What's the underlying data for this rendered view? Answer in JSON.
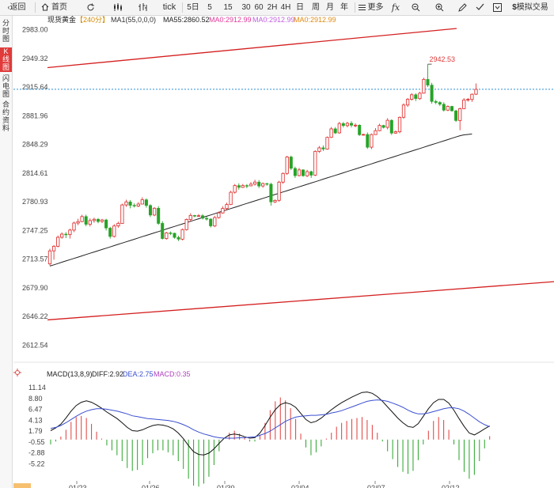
{
  "toolbar": {
    "back": "返回",
    "home": "首页",
    "tick": "tick",
    "periods": [
      "5日",
      "5",
      "15",
      "30",
      "60",
      "2H",
      "4H",
      "日",
      "周",
      "月",
      "年"
    ],
    "more": "更多",
    "sim_trade": "模拟交易"
  },
  "sidebar": {
    "tabs": [
      {
        "label": "分时图",
        "active": false
      },
      {
        "label": "K线图",
        "active": true
      },
      {
        "label": "闪电图",
        "active": false
      },
      {
        "label": "合约资料",
        "active": false
      }
    ]
  },
  "header": {
    "name": "现货黄金",
    "period": "【240分】",
    "ma_params": "MA1(55,0,0,0)",
    "ma55": "MA55:2860.52",
    "ma0_1": "MA0:2912.99",
    "ma0_2": "MA0:2912.99",
    "ma0_3": "MA0:2912.99"
  },
  "macd_header": {
    "name": "MACD(13,8,9)",
    "diff": "DIFF:2.92",
    "dea": "DEA:2.75",
    "macd": "MACD:0.35"
  },
  "colors": {
    "up": "#e03a3a",
    "down": "#27a327",
    "ma": "#222222",
    "trend": "#d42020",
    "dea": "#3a4fd0",
    "last_price": "#2a8fd6"
  },
  "chart_data": [
    {
      "type": "candlestick",
      "title": "现货黄金 240分",
      "ylim": [
        2600,
        2990
      ],
      "yticks": [
        2983.0,
        2949.32,
        2915.64,
        2881.96,
        2848.29,
        2814.61,
        2780.93,
        2747.25,
        2713.57,
        2679.9,
        2646.22,
        2612.54
      ],
      "xticks": [
        "01/23",
        "01/26",
        "01/30",
        "02/04",
        "02/07",
        "02/12"
      ],
      "high_annotation": {
        "label": "2942.53",
        "value": 2942.53
      },
      "last_price": 2912.99,
      "candles": [
        [
          2708.1,
          2723.3,
          2706.2,
          2725.8
        ],
        [
          2723.3,
          2728.7,
          2712.9,
          2730.2
        ],
        [
          2728.7,
          2739.3,
          2727.5,
          2741.3
        ],
        [
          2739.3,
          2743.0,
          2737.6,
          2745.0
        ],
        [
          2743.0,
          2742.4,
          2738.4,
          2745.3
        ],
        [
          2742.4,
          2747.7,
          2737.8,
          2749.4
        ],
        [
          2747.7,
          2756.0,
          2745.3,
          2757.7
        ],
        [
          2756.0,
          2757.7,
          2753.5,
          2761.0
        ],
        [
          2757.7,
          2763.6,
          2756.9,
          2765.7
        ],
        [
          2763.6,
          2754.5,
          2752.2,
          2765.8
        ],
        [
          2754.5,
          2758.9,
          2752.0,
          2761.4
        ],
        [
          2758.9,
          2760.4,
          2756.4,
          2762.3
        ],
        [
          2760.4,
          2757.8,
          2755.8,
          2761.9
        ],
        [
          2757.8,
          2759.6,
          2756.0,
          2760.8
        ],
        [
          2759.6,
          2750.1,
          2747.3,
          2761.0
        ],
        [
          2750.1,
          2740.3,
          2737.7,
          2751.5
        ],
        [
          2740.3,
          2752.6,
          2739.0,
          2754.7
        ],
        [
          2752.6,
          2755.6,
          2750.5,
          2757.6
        ],
        [
          2755.6,
          2777.3,
          2755.6,
          2778.7
        ],
        [
          2777.3,
          2780.8,
          2775.0,
          2783.4
        ],
        [
          2780.8,
          2776.8,
          2773.3,
          2783.0
        ],
        [
          2776.8,
          2776.0,
          2774.2,
          2779.1
        ],
        [
          2776.0,
          2778.3,
          2774.8,
          2780.5
        ],
        [
          2778.3,
          2783.3,
          2777.9,
          2786.3
        ],
        [
          2783.3,
          2776.6,
          2774.0,
          2784.9
        ],
        [
          2776.6,
          2765.4,
          2763.1,
          2778.0
        ],
        [
          2765.4,
          2773.4,
          2764.1,
          2774.6
        ],
        [
          2773.4,
          2755.6,
          2753.9,
          2775.8
        ],
        [
          2755.6,
          2737.8,
          2736.7,
          2758.1
        ],
        [
          2737.8,
          2744.4,
          2736.5,
          2745.6
        ],
        [
          2744.4,
          2744.0,
          2741.9,
          2746.1
        ],
        [
          2744.0,
          2739.1,
          2737.7,
          2744.6
        ],
        [
          2739.1,
          2737.1,
          2734.8,
          2741.1
        ],
        [
          2737.1,
          2748.3,
          2735.7,
          2749.6
        ],
        [
          2748.3,
          2760.2,
          2747.2,
          2761.3
        ],
        [
          2760.2,
          2764.9,
          2758.2,
          2767.5
        ],
        [
          2764.9,
          2764.4,
          2762.8,
          2765.6
        ],
        [
          2764.4,
          2764.6,
          2763.6,
          2766.6
        ],
        [
          2764.6,
          2761.6,
          2760.2,
          2766.5
        ],
        [
          2761.6,
          2760.6,
          2759.0,
          2763.3
        ],
        [
          2760.6,
          2752.6,
          2750.7,
          2761.8
        ],
        [
          2752.6,
          2762.4,
          2751.2,
          2764.5
        ],
        [
          2762.4,
          2767.9,
          2761.2,
          2769.4
        ],
        [
          2767.9,
          2773.1,
          2767.0,
          2775.6
        ],
        [
          2773.1,
          2777.7,
          2771.7,
          2780.0
        ],
        [
          2777.7,
          2792.1,
          2777.2,
          2793.9
        ],
        [
          2792.1,
          2800.0,
          2790.5,
          2801.9
        ],
        [
          2800.0,
          2797.9,
          2795.2,
          2802.6
        ],
        [
          2797.9,
          2800.0,
          2797.1,
          2802.0
        ],
        [
          2800.0,
          2799.7,
          2796.9,
          2801.8
        ],
        [
          2799.7,
          2801.7,
          2799.4,
          2804.0
        ],
        [
          2801.7,
          2804.1,
          2799.9,
          2806.8
        ],
        [
          2804.1,
          2799.5,
          2797.0,
          2806.4
        ],
        [
          2799.5,
          2802.3,
          2797.4,
          2803.5
        ],
        [
          2802.3,
          2801.6,
          2799.7,
          2803.2
        ],
        [
          2801.6,
          2780.8,
          2776.4,
          2803.3
        ],
        [
          2780.8,
          2782.6,
          2779.5,
          2783.8
        ],
        [
          2782.6,
          2804.0,
          2781.0,
          2805.6
        ],
        [
          2804.0,
          2814.2,
          2802.1,
          2815.4
        ],
        [
          2814.2,
          2833.5,
          2812.5,
          2834.9
        ],
        [
          2833.5,
          2820.2,
          2818.2,
          2835.1
        ],
        [
          2820.2,
          2811.7,
          2809.0,
          2822.2
        ],
        [
          2811.7,
          2818.4,
          2810.8,
          2820.8
        ],
        [
          2818.4,
          2811.5,
          2810.3,
          2819.1
        ],
        [
          2811.5,
          2816.4,
          2810.0,
          2818.5
        ],
        [
          2816.4,
          2812.2,
          2809.0,
          2817.5
        ],
        [
          2812.2,
          2840.1,
          2811.2,
          2841.3
        ],
        [
          2840.1,
          2844.3,
          2838.4,
          2846.4
        ],
        [
          2844.3,
          2842.9,
          2840.6,
          2847.1
        ],
        [
          2842.9,
          2856.6,
          2842.1,
          2857.6
        ],
        [
          2856.6,
          2866.6,
          2855.9,
          2868.7
        ],
        [
          2866.6,
          2861.8,
          2860.6,
          2868.6
        ],
        [
          2861.8,
          2872.8,
          2860.9,
          2874.9
        ],
        [
          2872.8,
          2870.4,
          2868.3,
          2874.7
        ],
        [
          2870.4,
          2873.1,
          2868.4,
          2874.9
        ],
        [
          2873.1,
          2870.9,
          2868.3,
          2875.6
        ],
        [
          2870.9,
          2870.9,
          2868.4,
          2873.1
        ],
        [
          2870.9,
          2859.7,
          2858.2,
          2871.9
        ],
        [
          2859.7,
          2860.0,
          2859.0,
          2860.8
        ],
        [
          2860.0,
          2845.0,
          2843.1,
          2862.3
        ],
        [
          2845.0,
          2859.9,
          2842.7,
          2861.1
        ],
        [
          2859.9,
          2864.5,
          2859.7,
          2867.4
        ],
        [
          2864.5,
          2870.6,
          2863.7,
          2872.6
        ],
        [
          2870.6,
          2868.3,
          2867.1,
          2871.3
        ],
        [
          2868.3,
          2876.6,
          2865.9,
          2879.1
        ],
        [
          2876.6,
          2861.6,
          2859.4,
          2877.7
        ],
        [
          2861.6,
          2863.2,
          2860.7,
          2864.6
        ],
        [
          2863.2,
          2880.1,
          2861.4,
          2881.2
        ],
        [
          2880.1,
          2894.5,
          2878.3,
          2896.6
        ],
        [
          2894.5,
          2901.2,
          2892.3,
          2902.7
        ],
        [
          2901.2,
          2906.6,
          2899.7,
          2908.6
        ],
        [
          2906.6,
          2902.1,
          2899.2,
          2908.3
        ],
        [
          2902.1,
          2908.4,
          2900.6,
          2910.1
        ],
        [
          2908.4,
          2924.6,
          2908.1,
          2926.7
        ],
        [
          2924.6,
          2917.9,
          2915.7,
          2942.5
        ],
        [
          2917.9,
          2898.7,
          2896.1,
          2920.6
        ],
        [
          2898.7,
          2897.6,
          2895.5,
          2900.8
        ],
        [
          2897.6,
          2895.5,
          2893.3,
          2899.1
        ],
        [
          2895.5,
          2888.5,
          2886.9,
          2897.8
        ],
        [
          2888.5,
          2893.0,
          2887.4,
          2894.1
        ],
        [
          2893.0,
          2887.8,
          2886.9,
          2893.7
        ],
        [
          2887.8,
          2876.4,
          2874.7,
          2889.0
        ],
        [
          2876.4,
          2890.3,
          2864.9,
          2891.5
        ],
        [
          2890.3,
          2900.4,
          2889.6,
          2902.7
        ],
        [
          2900.4,
          2901.2,
          2898.4,
          2902.8
        ],
        [
          2901.2,
          2907.2,
          2898.3,
          2908.1
        ],
        [
          2907.2,
          2912.9,
          2906.3,
          2919.9
        ]
      ],
      "ma55": [
        2705.5,
        2707.0,
        2708.5,
        2710.0,
        2711.5,
        2713.0,
        2714.5,
        2716.0,
        2717.5,
        2719.0,
        2720.5,
        2722.0,
        2723.5,
        2725.0,
        2726.5,
        2728.0,
        2729.5,
        2731.0,
        2732.5,
        2734.0,
        2735.5,
        2737.0,
        2738.5,
        2740.0,
        2741.5,
        2743.0,
        2744.5,
        2746.0,
        2747.5,
        2749.0,
        2750.5,
        2752.0,
        2753.5,
        2755.0,
        2756.5,
        2758.0,
        2759.5,
        2761.0,
        2762.5,
        2764.0,
        2765.5,
        2767.0,
        2768.5,
        2770.0,
        2771.5,
        2773.0,
        2774.5,
        2776.0,
        2777.5,
        2779.0,
        2780.5,
        2782.0,
        2783.5,
        2785.0,
        2786.5,
        2788.0,
        2789.5,
        2791.0,
        2792.5,
        2794.0,
        2795.5,
        2797.0,
        2798.5,
        2800.0,
        2801.5,
        2803.0,
        2804.5,
        2806.0,
        2807.5,
        2809.0,
        2810.5,
        2812.0,
        2813.5,
        2815.0,
        2816.5,
        2818.0,
        2819.5,
        2821.0,
        2822.5,
        2824.0,
        2825.5,
        2827.0,
        2828.5,
        2830.0,
        2831.5,
        2833.0,
        2834.5,
        2836.0,
        2837.5,
        2839.0,
        2840.5,
        2842.0,
        2843.5,
        2845.0,
        2846.5,
        2848.0,
        2849.5,
        2851.0,
        2852.5,
        2854.0,
        2855.5,
        2857.0,
        2858.5,
        2859.5,
        2860.0,
        2860.52
      ]
    },
    {
      "type": "line",
      "title": "MACD(13,8,9)",
      "ylim": [
        -7.5,
        12.5
      ],
      "yticks": [
        11.14,
        8.8,
        6.47,
        4.13,
        1.79,
        -0.55,
        -2.88,
        -5.22
      ],
      "series": [
        {
          "name": "DIFF",
          "values": [
            1.9,
            2.5,
            3.3,
            4.6,
            6.1,
            7.3,
            8.0,
            8.3,
            8.0,
            7.4,
            6.7,
            5.9,
            5.2,
            4.5,
            3.6,
            2.6,
            1.9,
            1.8,
            2.1,
            2.6,
            3.0,
            3.2,
            3.1,
            2.8,
            2.3,
            1.4,
            0.2,
            -1.3,
            -2.6,
            -3.2,
            -3.3,
            -2.9,
            -2.0,
            -0.8,
            0.3,
            1.0,
            1.2,
            1.0,
            0.6,
            0.3,
            0.4,
            1.4,
            3.0,
            4.8,
            6.4,
            7.5,
            7.9,
            7.6,
            6.9,
            5.6,
            4.3,
            3.6,
            3.9,
            4.6,
            5.5,
            6.4,
            7.2,
            7.9,
            8.5,
            9.1,
            9.6,
            10.1,
            10.2,
            9.9,
            9.2,
            8.2,
            7.0,
            5.8,
            4.6,
            3.6,
            2.8,
            2.6,
            3.4,
            5.0,
            6.6,
            7.9,
            8.6,
            8.6,
            7.8,
            6.3,
            4.5,
            2.8,
            1.4,
            1.0,
            1.6,
            2.3,
            2.9
          ]
        },
        {
          "name": "DEA",
          "values": [
            2.4,
            2.6,
            3.0,
            3.6,
            4.3,
            5.0,
            5.6,
            6.1,
            6.4,
            6.6,
            6.6,
            6.5,
            6.3,
            6.1,
            5.8,
            5.5,
            5.1,
            4.9,
            4.7,
            4.5,
            4.4,
            4.3,
            4.2,
            4.1,
            3.9,
            3.6,
            3.2,
            2.7,
            2.1,
            1.6,
            1.2,
            0.9,
            0.6,
            0.4,
            0.3,
            0.3,
            0.3,
            0.4,
            0.4,
            0.5,
            0.6,
            0.9,
            1.3,
            1.8,
            2.5,
            3.2,
            3.9,
            4.4,
            4.8,
            5.0,
            5.1,
            5.2,
            5.2,
            5.3,
            5.4,
            5.7,
            5.9,
            6.2,
            6.6,
            7.0,
            7.4,
            7.8,
            8.2,
            8.4,
            8.5,
            8.4,
            8.2,
            7.8,
            7.4,
            6.9,
            6.3,
            5.8,
            5.5,
            5.5,
            5.7,
            6.0,
            6.3,
            6.6,
            6.8,
            6.8,
            6.6,
            6.1,
            5.4,
            4.6,
            3.8,
            3.2,
            2.75
          ]
        },
        {
          "name": "MACD",
          "values": [
            -0.5,
            -0.2,
            0.3,
            1.0,
            1.8,
            2.3,
            2.4,
            2.2,
            1.6,
            0.8,
            0.1,
            -0.6,
            -1.1,
            -1.6,
            -2.2,
            -2.9,
            -3.2,
            -3.1,
            -2.6,
            -1.9,
            -1.4,
            -1.1,
            -1.1,
            -1.3,
            -1.6,
            -2.2,
            -3.0,
            -4.0,
            -4.7,
            -4.8,
            -4.5,
            -3.8,
            -2.6,
            -1.2,
            0.0,
            0.7,
            0.9,
            0.6,
            0.2,
            -0.2,
            -0.2,
            0.5,
            1.7,
            3.0,
            3.9,
            4.3,
            4.0,
            3.2,
            2.1,
            0.6,
            -0.8,
            -1.6,
            -1.3,
            -0.7,
            0.1,
            0.7,
            1.3,
            1.7,
            1.9,
            2.1,
            2.2,
            2.3,
            2.0,
            1.5,
            0.7,
            -0.2,
            -1.2,
            -2.0,
            -2.8,
            -3.3,
            -3.5,
            -3.2,
            -2.1,
            -0.5,
            0.9,
            1.9,
            2.3,
            2.0,
            1.0,
            -0.5,
            -2.1,
            -3.3,
            -4.0,
            -3.6,
            -2.2,
            -0.9,
            0.35
          ]
        }
      ]
    }
  ]
}
